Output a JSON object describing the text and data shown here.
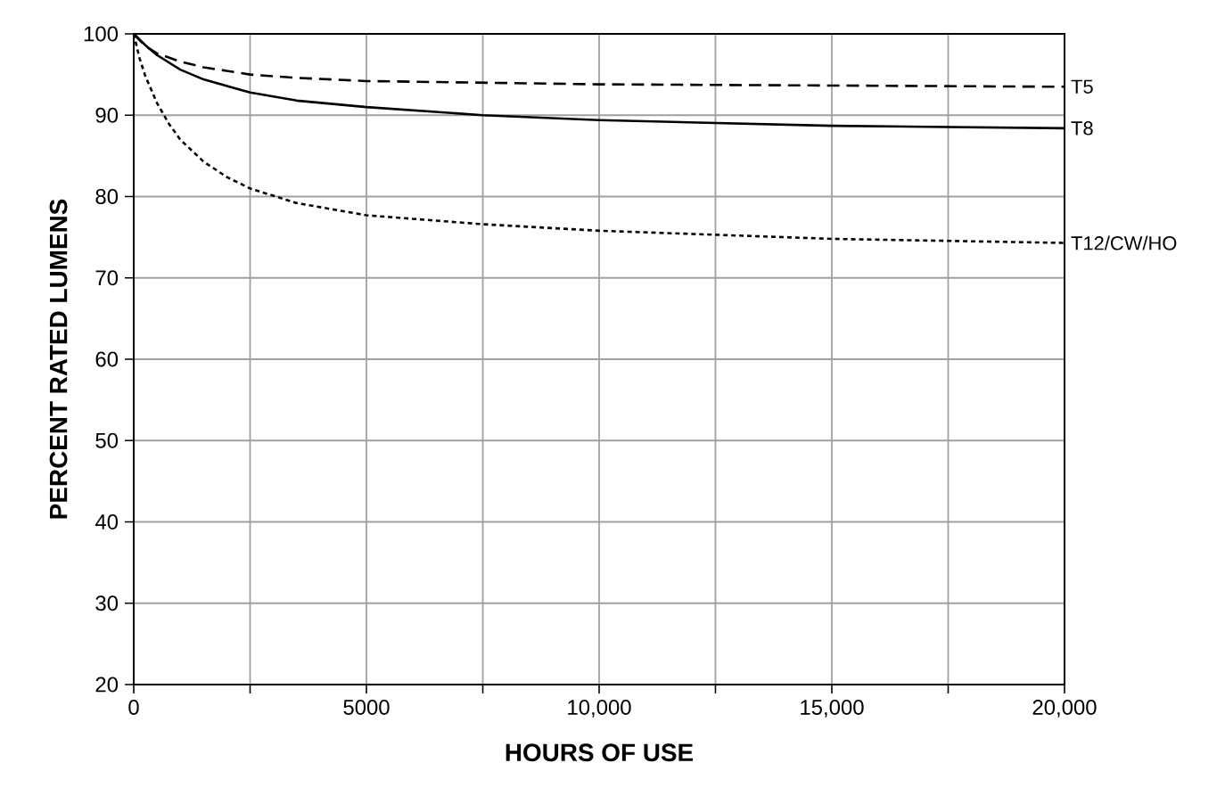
{
  "chart_data": {
    "type": "line",
    "xlabel": "HOURS OF USE",
    "ylabel": "PERCENT RATED LUMENS",
    "xlim": [
      0,
      20000
    ],
    "ylim": [
      20,
      100
    ],
    "xticks": [
      0,
      {
        "value": 2500,
        "label": null
      },
      5000,
      {
        "value": 7500,
        "label": null
      },
      {
        "value": 10000,
        "label": "10,000"
      },
      {
        "value": 12500,
        "label": null
      },
      {
        "value": 15000,
        "label": "15,000"
      },
      {
        "value": 17500,
        "label": null
      },
      {
        "value": 20000,
        "label": "20,000"
      }
    ],
    "yticks": [
      20,
      30,
      40,
      50,
      60,
      70,
      80,
      90,
      100
    ],
    "grid": true,
    "legend": false,
    "marker": "none",
    "series": [
      {
        "name": "T5",
        "color": "#000000",
        "line_style": "dashed",
        "x": [
          0,
          250,
          500,
          1000,
          1500,
          2500,
          3500,
          5000,
          10000,
          20000
        ],
        "values": [
          100,
          98.5,
          97.6,
          96.6,
          95.9,
          95,
          94.6,
          94.2,
          93.8,
          93.5
        ]
      },
      {
        "name": "T8",
        "color": "#000000",
        "line_style": "solid",
        "x": [
          0,
          250,
          500,
          1000,
          1500,
          2500,
          3500,
          5000,
          7500,
          10000,
          15000,
          20000
        ],
        "values": [
          100,
          98.6,
          97.4,
          95.6,
          94.4,
          92.8,
          91.8,
          91,
          90,
          89.4,
          88.7,
          88.4
        ]
      },
      {
        "name": "T12/CW/HO",
        "color": "#000000",
        "line_style": "dotted",
        "x": [
          0,
          125,
          250,
          500,
          750,
          1000,
          1500,
          2000,
          2500,
          3500,
          5000,
          7500,
          10000,
          15000,
          20000
        ],
        "values": [
          100,
          97,
          94.8,
          91.5,
          89,
          87,
          84.3,
          82.4,
          81,
          79.2,
          77.7,
          76.6,
          75.8,
          74.8,
          74.3
        ]
      }
    ]
  }
}
